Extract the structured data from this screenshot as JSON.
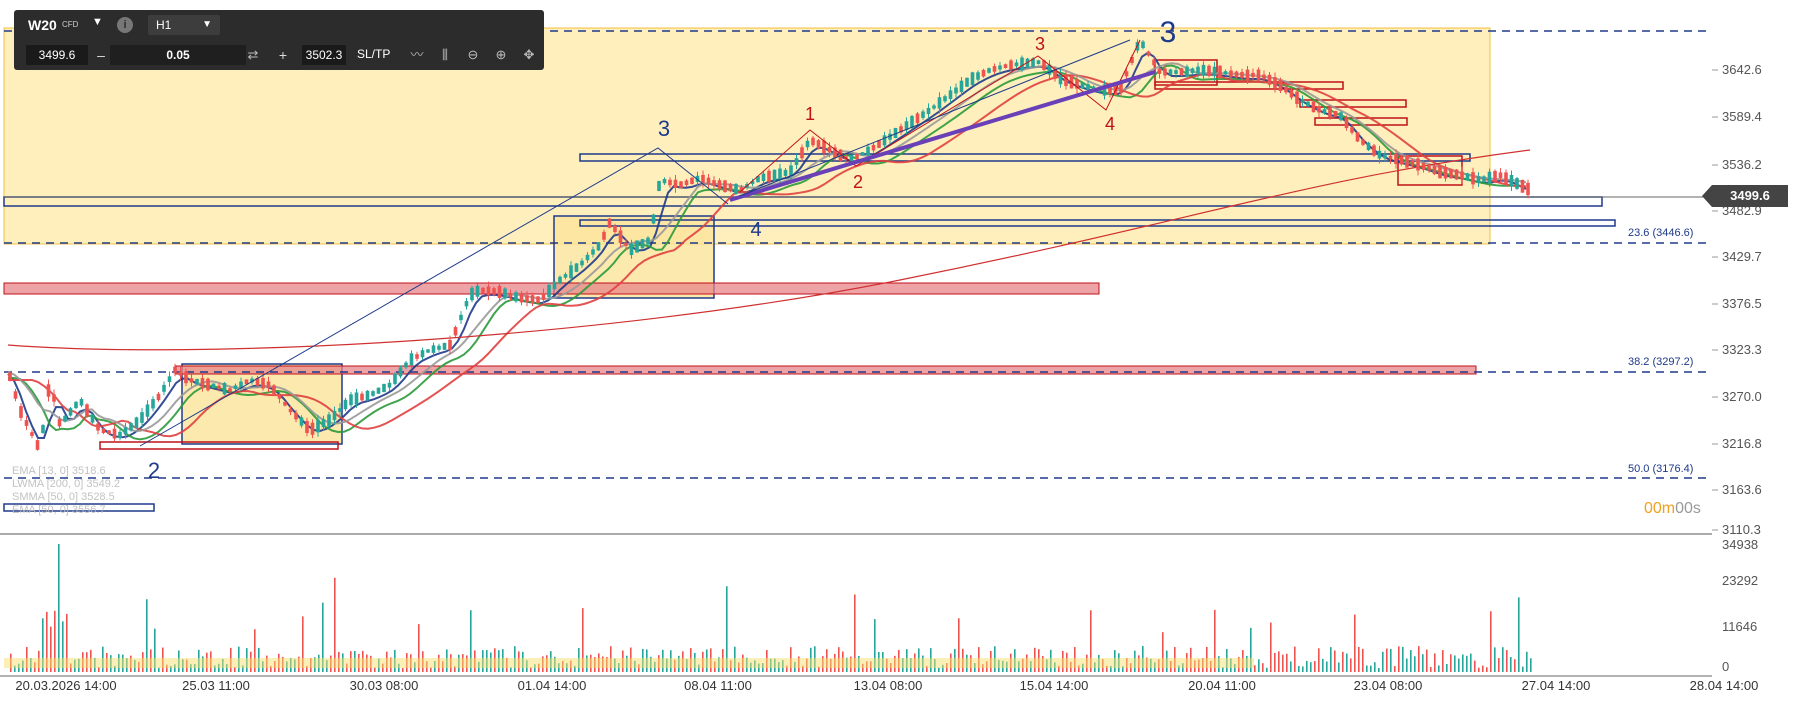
{
  "toolbar": {
    "symbol": "W20",
    "symbol_type": "CFD",
    "timeframe": "H1",
    "bid": "3499.6",
    "quantity": "0.05",
    "ask": "3502.3",
    "sltp_label": "SL/TP",
    "minus": "–",
    "plus": "+",
    "icons": [
      "chevron-down-icon",
      "info-icon",
      "swap-icon",
      "line-chart-icon",
      "candles-icon",
      "zoom-out-icon",
      "zoom-in-icon",
      "move-icon"
    ]
  },
  "price_axis": [
    "3642.6",
    "3589.4",
    "3536.2",
    "3482.9",
    "3429.7",
    "3376.5",
    "3323.3",
    "3270.0",
    "3216.8",
    "3163.6",
    "3110.3"
  ],
  "current_price": "3499.6",
  "fib_labels": [
    "23.6 (3446.6)",
    "38.2 (3297.2)",
    "50.0 (3176.4)"
  ],
  "time_axis": [
    "20.03.2026 14:00",
    "25.03 11:00",
    "30.03 08:00",
    "01.04 14:00",
    "08.04 11:00",
    "13.04 08:00",
    "15.04 14:00",
    "20.04 11:00",
    "23.04 08:00",
    "27.04 14:00",
    "28.04 14:00"
  ],
  "volume_axis": [
    "34938",
    "23292",
    "11646",
    "0"
  ],
  "wave_labels": [
    "3",
    "4",
    "2",
    "1",
    "2",
    "3",
    "4",
    "3"
  ],
  "legend": [
    "EMA [13, 0] 3518.6",
    "LWMA [200, 0] 3549.2",
    "SMMA [50, 0] 3528.5",
    "EMA [50, 0] 3556.7"
  ],
  "timer": {
    "minutes": "00m",
    "seconds": "00s"
  },
  "colors": {
    "bull": "#26a69a",
    "bear": "#ef5350",
    "zone": "#fdeaa6",
    "blue": "#1e3a8a",
    "red_zone": "#e8848a"
  }
}
